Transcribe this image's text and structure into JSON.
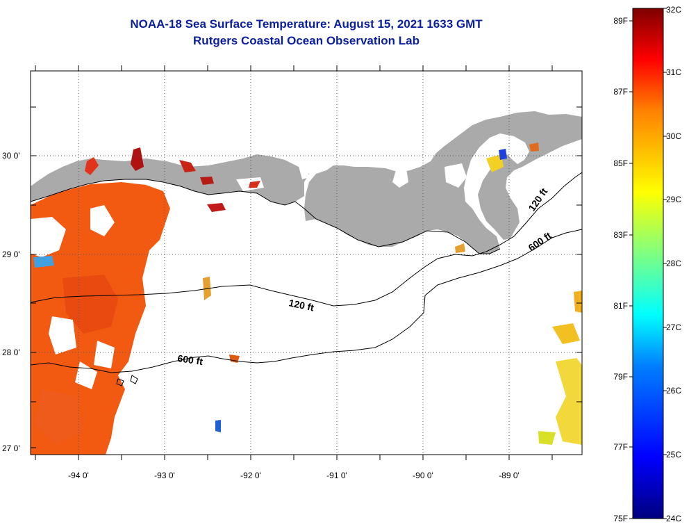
{
  "title": "NOAA-18 Sea Surface Temperature:  August 15, 2021 1633 GMT",
  "subtitle": "Rutgers Coastal Ocean Observation Lab",
  "map": {
    "lon_range": [
      -94.55,
      -88.25
    ],
    "lat_range": [
      26.95,
      30.85
    ],
    "lat_ticks": [
      {
        "value": 30,
        "label": "30 0'"
      },
      {
        "value": 29,
        "label": "29 0'"
      },
      {
        "value": 28,
        "label": "28 0'"
      },
      {
        "value": 27,
        "label": "27 0'"
      }
    ],
    "lon_ticks": [
      {
        "value": -94,
        "label": "-94 0'"
      },
      {
        "value": -93,
        "label": "-93 0'"
      },
      {
        "value": -92,
        "label": "-92 0'"
      },
      {
        "value": -91,
        "label": "-91 0'"
      },
      {
        "value": -90,
        "label": "-90 0'"
      },
      {
        "value": -89,
        "label": "-89 0'"
      }
    ],
    "grid": "dotted",
    "contours": [
      {
        "label": "120 ft"
      },
      {
        "label": "600 ft"
      },
      {
        "label": "120 ft"
      },
      {
        "label": "600 ft"
      }
    ],
    "colors": {
      "land": "#aaaaaa",
      "cloud": "#ffffff",
      "water_warm": "#f25a12"
    }
  },
  "colorbar": {
    "celsius": [
      "32C",
      "31C",
      "30C",
      "29C",
      "28C",
      "27C",
      "26C",
      "25C",
      "24C"
    ],
    "fahrenheit": [
      "89F",
      "87F",
      "85F",
      "83F",
      "81F",
      "79F",
      "77F",
      "75F"
    ],
    "colors": [
      "#00007f",
      "#0000ff",
      "#0080ff",
      "#00ffff",
      "#80ff80",
      "#ffff00",
      "#ff8000",
      "#ff0000",
      "#7f0000"
    ]
  }
}
